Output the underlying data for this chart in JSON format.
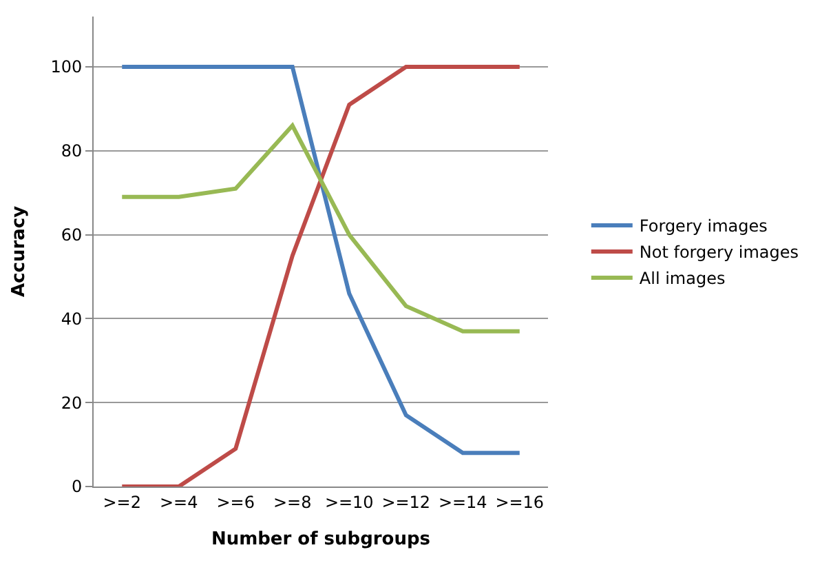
{
  "chart_data": {
    "type": "line",
    "xlabel": "Number of subgroups",
    "ylabel": "Accuracy",
    "categories": [
      ">=2",
      ">=4",
      ">=6",
      ">=8",
      ">=10",
      ">=12",
      ">=14",
      ">=16"
    ],
    "series": [
      {
        "name": "Forgery images",
        "color": "#4a7ebb",
        "values": [
          100,
          100,
          100,
          100,
          46,
          17,
          8,
          8
        ]
      },
      {
        "name": "Not forgery images",
        "color": "#be4b48",
        "values": [
          0,
          0,
          9,
          55,
          91,
          100,
          100,
          100
        ]
      },
      {
        "name": "All images",
        "color": "#98b954",
        "values": [
          69,
          69,
          71,
          86,
          60,
          43,
          37,
          37
        ]
      }
    ],
    "ylim": [
      0,
      112
    ],
    "yticks": [
      0,
      20,
      40,
      60,
      80,
      100
    ],
    "grid": "y",
    "legend": "right",
    "marker": "none",
    "line_style": "solid"
  }
}
